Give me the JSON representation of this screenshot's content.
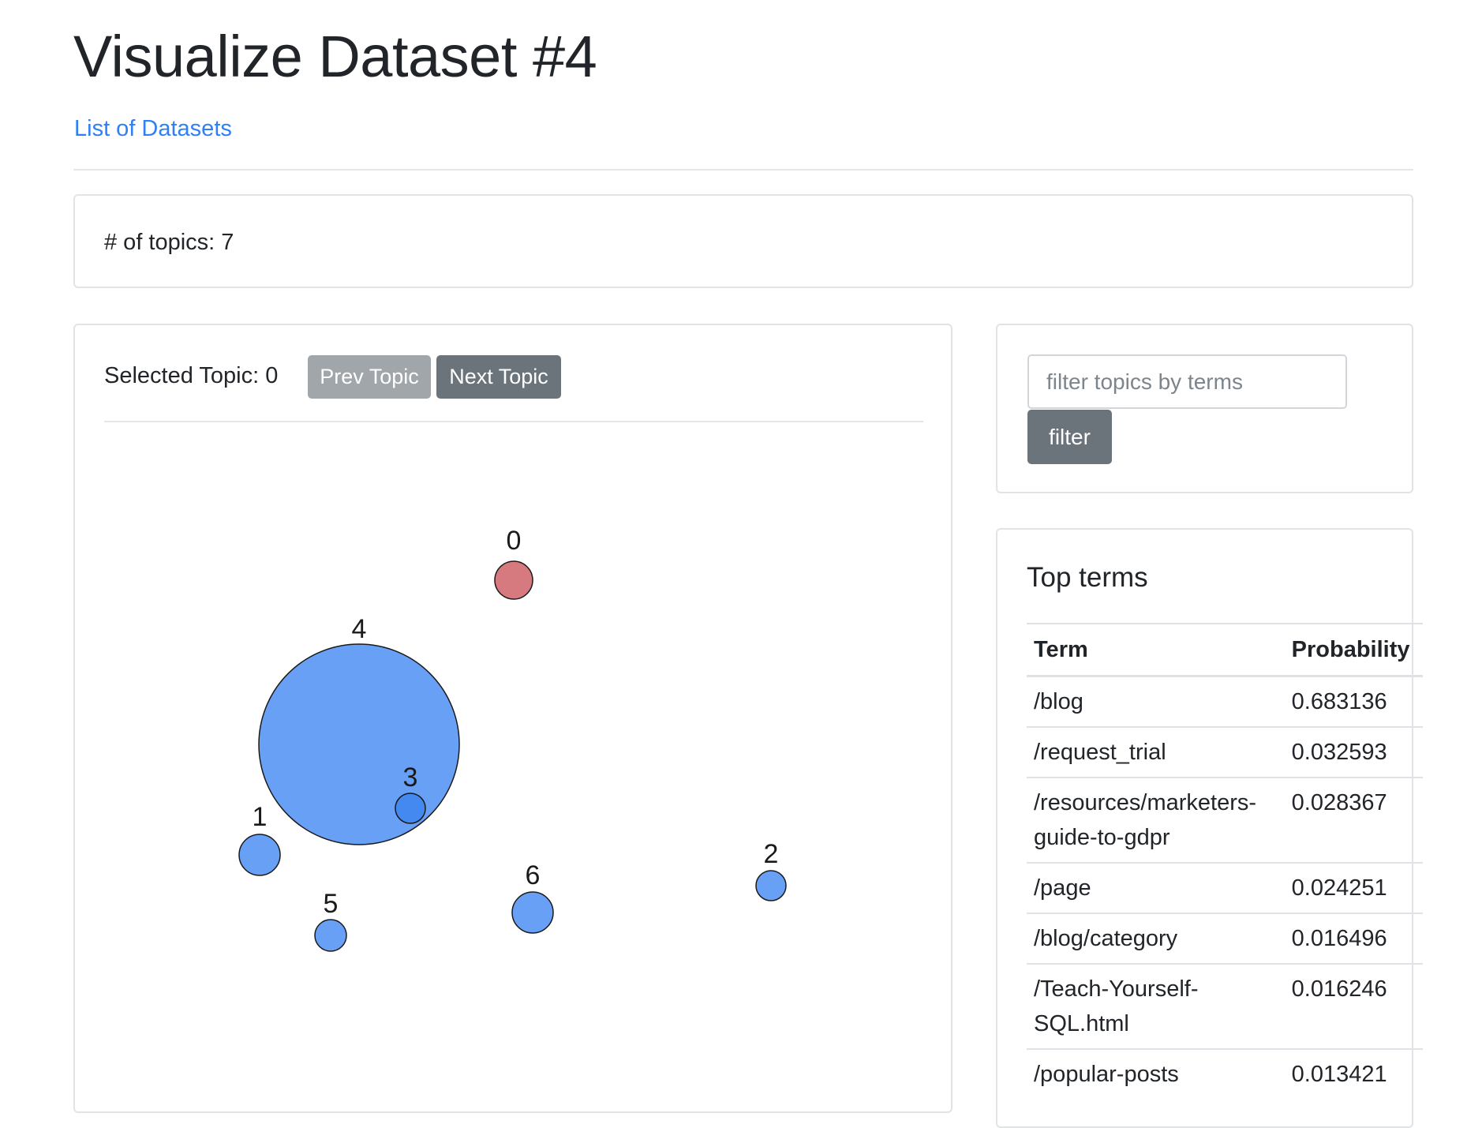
{
  "page": {
    "title": "Visualize Dataset #4",
    "datasets_link": "List of Datasets"
  },
  "summary": {
    "topics_label": "# of topics: 7"
  },
  "visualization": {
    "selected_label": "Selected Topic: 0",
    "prev_button": "Prev Topic",
    "next_button": "Next Topic",
    "topics": [
      {
        "id": "0",
        "selected": true
      },
      {
        "id": "1",
        "selected": false
      },
      {
        "id": "2",
        "selected": false
      },
      {
        "id": "3",
        "selected": false
      },
      {
        "id": "4",
        "selected": false
      },
      {
        "id": "5",
        "selected": false
      },
      {
        "id": "6",
        "selected": false
      }
    ],
    "colors": {
      "selected": "#d77a7f",
      "default": "#68a0f5",
      "nested": "#4389f0",
      "outline": "#1a1a1a"
    }
  },
  "filter": {
    "placeholder": "filter topics by terms",
    "value": "",
    "button": "filter"
  },
  "top_terms": {
    "heading": "Top terms",
    "columns": [
      "Term",
      "Probability"
    ],
    "rows": [
      {
        "term": "/blog",
        "probability": "0.683136"
      },
      {
        "term": "/request_trial",
        "probability": "0.032593"
      },
      {
        "term": "/resources/marketers-guide-to-gdpr",
        "probability": "0.028367"
      },
      {
        "term": "/page",
        "probability": "0.024251"
      },
      {
        "term": "/blog/category",
        "probability": "0.016496"
      },
      {
        "term": "/Teach-Yourself-SQL.html",
        "probability": "0.016246"
      },
      {
        "term": "/popular-posts",
        "probability": "0.013421"
      }
    ]
  }
}
